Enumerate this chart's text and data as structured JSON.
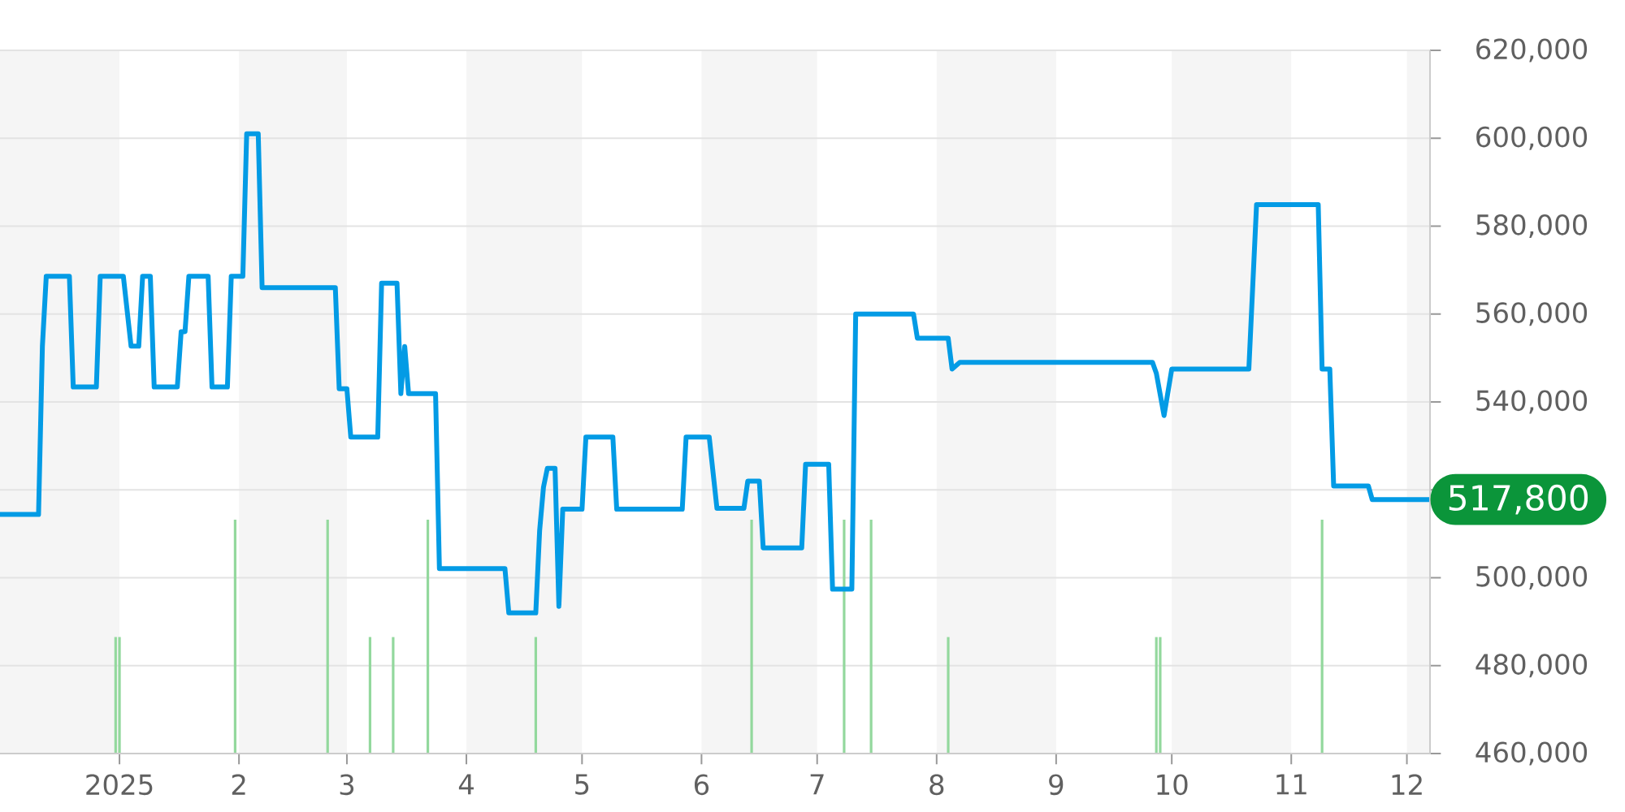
{
  "chart_data": {
    "type": "line",
    "xlim": [
      "2024-12-01",
      "2025-12-07"
    ],
    "xticks": [
      {
        "value": "2025-01-01",
        "label": "2025"
      },
      {
        "value": "2025-02-01",
        "label": "2"
      },
      {
        "value": "2025-03-01",
        "label": "3"
      },
      {
        "value": "2025-04-01",
        "label": "4"
      },
      {
        "value": "2025-05-01",
        "label": "5"
      },
      {
        "value": "2025-06-01",
        "label": "6"
      },
      {
        "value": "2025-07-01",
        "label": "7"
      },
      {
        "value": "2025-08-01",
        "label": "8"
      },
      {
        "value": "2025-09-01",
        "label": "9"
      },
      {
        "value": "2025-10-01",
        "label": "10"
      },
      {
        "value": "2025-11-01",
        "label": "11"
      },
      {
        "value": "2025-12-01",
        "label": "12"
      }
    ],
    "ylim": [
      460000,
      620000
    ],
    "yticks": [
      {
        "value": 460000,
        "label": "460,000"
      },
      {
        "value": 480000,
        "label": "480,000"
      },
      {
        "value": 500000,
        "label": "500,000"
      },
      {
        "value": 520000,
        "label": null
      },
      {
        "value": 540000,
        "label": "540,000"
      },
      {
        "value": 560000,
        "label": "560,000"
      },
      {
        "value": 580000,
        "label": "580,000"
      },
      {
        "value": 600000,
        "label": "600,000"
      },
      {
        "value": 620000,
        "label": "620,000"
      }
    ],
    "grid": "y",
    "bands": [
      {
        "axis": "x",
        "from": "2024-12-01",
        "to": "2025-01-01",
        "color": "#f5f5f5"
      },
      {
        "axis": "x",
        "from": "2025-02-01",
        "to": "2025-03-01",
        "color": "#f5f5f5"
      },
      {
        "axis": "x",
        "from": "2025-04-01",
        "to": "2025-05-01",
        "color": "#f5f5f5"
      },
      {
        "axis": "x",
        "from": "2025-06-01",
        "to": "2025-07-01",
        "color": "#f5f5f5"
      },
      {
        "axis": "x",
        "from": "2025-08-01",
        "to": "2025-09-01",
        "color": "#f5f5f5"
      },
      {
        "axis": "x",
        "from": "2025-10-01",
        "to": "2025-11-01",
        "color": "#f5f5f5"
      },
      {
        "axis": "x",
        "from": "2025-12-01",
        "to": "2025-12-07",
        "color": "#f5f5f5"
      }
    ],
    "series": [
      {
        "type": "bar",
        "color": "#93d89d",
        "x": [
          "2024-12-31",
          "2025-01-01",
          "2025-01-31",
          "2025-02-24",
          "2025-03-07",
          "2025-03-13",
          "2025-03-22",
          "2025-04-19",
          "2025-06-14",
          "2025-07-08",
          "2025-07-15",
          "2025-08-04",
          "2025-09-27",
          "2025-09-28",
          "2025-11-09"
        ],
        "values": [
          486500,
          486500,
          513200,
          513200,
          486500,
          486500,
          513200,
          486500,
          513200,
          513200,
          513200,
          486500,
          486500,
          486500,
          513200
        ]
      },
      {
        "color": "#039be5",
        "x": [
          "2024-12-01",
          "2024-12-11",
          "2024-12-12",
          "2024-12-13",
          "2024-12-19",
          "2024-12-20",
          "2024-12-26",
          "2024-12-27",
          "2025-01-02",
          "2025-01-04",
          "2025-01-06",
          "2025-01-07",
          "2025-01-09",
          "2025-01-10",
          "2025-01-16",
          "2025-01-17",
          "2025-01-18",
          "2025-01-19",
          "2025-01-24",
          "2025-01-25",
          "2025-01-29",
          "2025-01-30",
          "2025-02-02",
          "2025-02-03",
          "2025-02-06",
          "2025-02-07",
          "2025-02-26",
          "2025-02-27",
          "2025-03-01",
          "2025-03-02",
          "2025-03-09",
          "2025-03-10",
          "2025-03-14",
          "2025-03-15",
          "2025-03-16",
          "2025-03-17",
          "2025-03-24",
          "2025-03-25",
          "2025-04-11",
          "2025-04-12",
          "2025-04-19",
          "2025-04-20",
          "2025-04-21",
          "2025-04-22",
          "2025-04-24",
          "2025-04-25",
          "2025-04-26",
          "2025-05-01",
          "2025-05-02",
          "2025-05-09",
          "2025-05-10",
          "2025-05-27",
          "2025-05-28",
          "2025-06-03",
          "2025-06-05",
          "2025-06-12",
          "2025-06-13",
          "2025-06-16",
          "2025-06-17",
          "2025-06-27",
          "2025-06-28",
          "2025-07-04",
          "2025-07-05",
          "2025-07-10",
          "2025-07-11",
          "2025-07-26",
          "2025-07-27",
          "2025-08-04",
          "2025-08-05",
          "2025-08-07",
          "2025-09-26",
          "2025-09-27",
          "2025-09-29",
          "2025-10-01",
          "2025-10-21",
          "2025-10-23",
          "2025-11-08",
          "2025-11-09",
          "2025-11-11",
          "2025-11-12",
          "2025-11-21",
          "2025-11-22",
          "2025-12-07"
        ],
        "values": [
          514400,
          514400,
          552700,
          568600,
          568600,
          543400,
          543400,
          568600,
          568600,
          552700,
          552700,
          568600,
          568600,
          543400,
          543400,
          556000,
          556000,
          568600,
          568600,
          543400,
          543400,
          568600,
          568600,
          601000,
          601000,
          566000,
          566000,
          543000,
          543000,
          532000,
          532000,
          567000,
          567000,
          541900,
          552600,
          541900,
          541900,
          502100,
          502100,
          492000,
          492000,
          510700,
          520600,
          524900,
          524900,
          493500,
          515600,
          515600,
          532000,
          532000,
          515600,
          515600,
          532000,
          532000,
          515800,
          515800,
          522000,
          522000,
          506800,
          506800,
          525800,
          525800,
          497400,
          497400,
          560000,
          560000,
          554500,
          554500,
          547500,
          549000,
          549000,
          546500,
          536900,
          547500,
          547500,
          584900,
          584900,
          547500,
          547500,
          520900,
          520900,
          517800,
          517800
        ]
      }
    ],
    "annotations": [
      {
        "text": "517,800",
        "x": "2025-12-07",
        "y": 517800
      }
    ]
  }
}
